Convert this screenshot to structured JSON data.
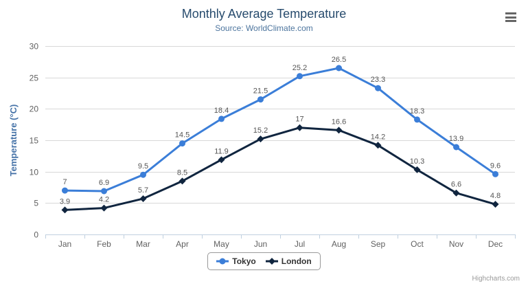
{
  "header": {
    "title": "Monthly Average Temperature",
    "subtitle": "Source: WorldClimate.com"
  },
  "menu": {
    "icon": "hamburger-icon"
  },
  "credits": {
    "label": "Highcharts.com"
  },
  "colors": {
    "title": "#274b6d",
    "subtitle": "#4d759e",
    "axis_label": "#606060",
    "yaxis_title": "#4572a7",
    "gridline": "#d8d8d8",
    "axis_line": "#c0d0e0",
    "data_label": "#555555",
    "tokyo": "#3b7ed8",
    "london": "#10253f"
  },
  "chart_data": {
    "type": "line",
    "title": "Monthly Average Temperature",
    "subtitle": "Source: WorldClimate.com",
    "xlabel": "",
    "ylabel": "Temperature (°C)",
    "ylim": [
      0,
      30
    ],
    "ytick_interval": 5,
    "yticks": [
      0,
      5,
      10,
      15,
      20,
      25,
      30
    ],
    "grid": true,
    "legend_position": "bottom",
    "data_labels": true,
    "categories": [
      "Jan",
      "Feb",
      "Mar",
      "Apr",
      "May",
      "Jun",
      "Jul",
      "Aug",
      "Sep",
      "Oct",
      "Nov",
      "Dec"
    ],
    "series": [
      {
        "name": "Tokyo",
        "color": "#3b7ed8",
        "marker": "circle",
        "values": [
          7,
          6.9,
          9.5,
          14.5,
          18.4,
          21.5,
          25.2,
          26.5,
          23.3,
          18.3,
          13.9,
          9.6
        ]
      },
      {
        "name": "London",
        "color": "#10253f",
        "marker": "diamond",
        "values": [
          3.9,
          4.2,
          5.7,
          8.5,
          11.9,
          15.2,
          17,
          16.6,
          14.2,
          10.3,
          6.6,
          4.8
        ]
      }
    ]
  }
}
